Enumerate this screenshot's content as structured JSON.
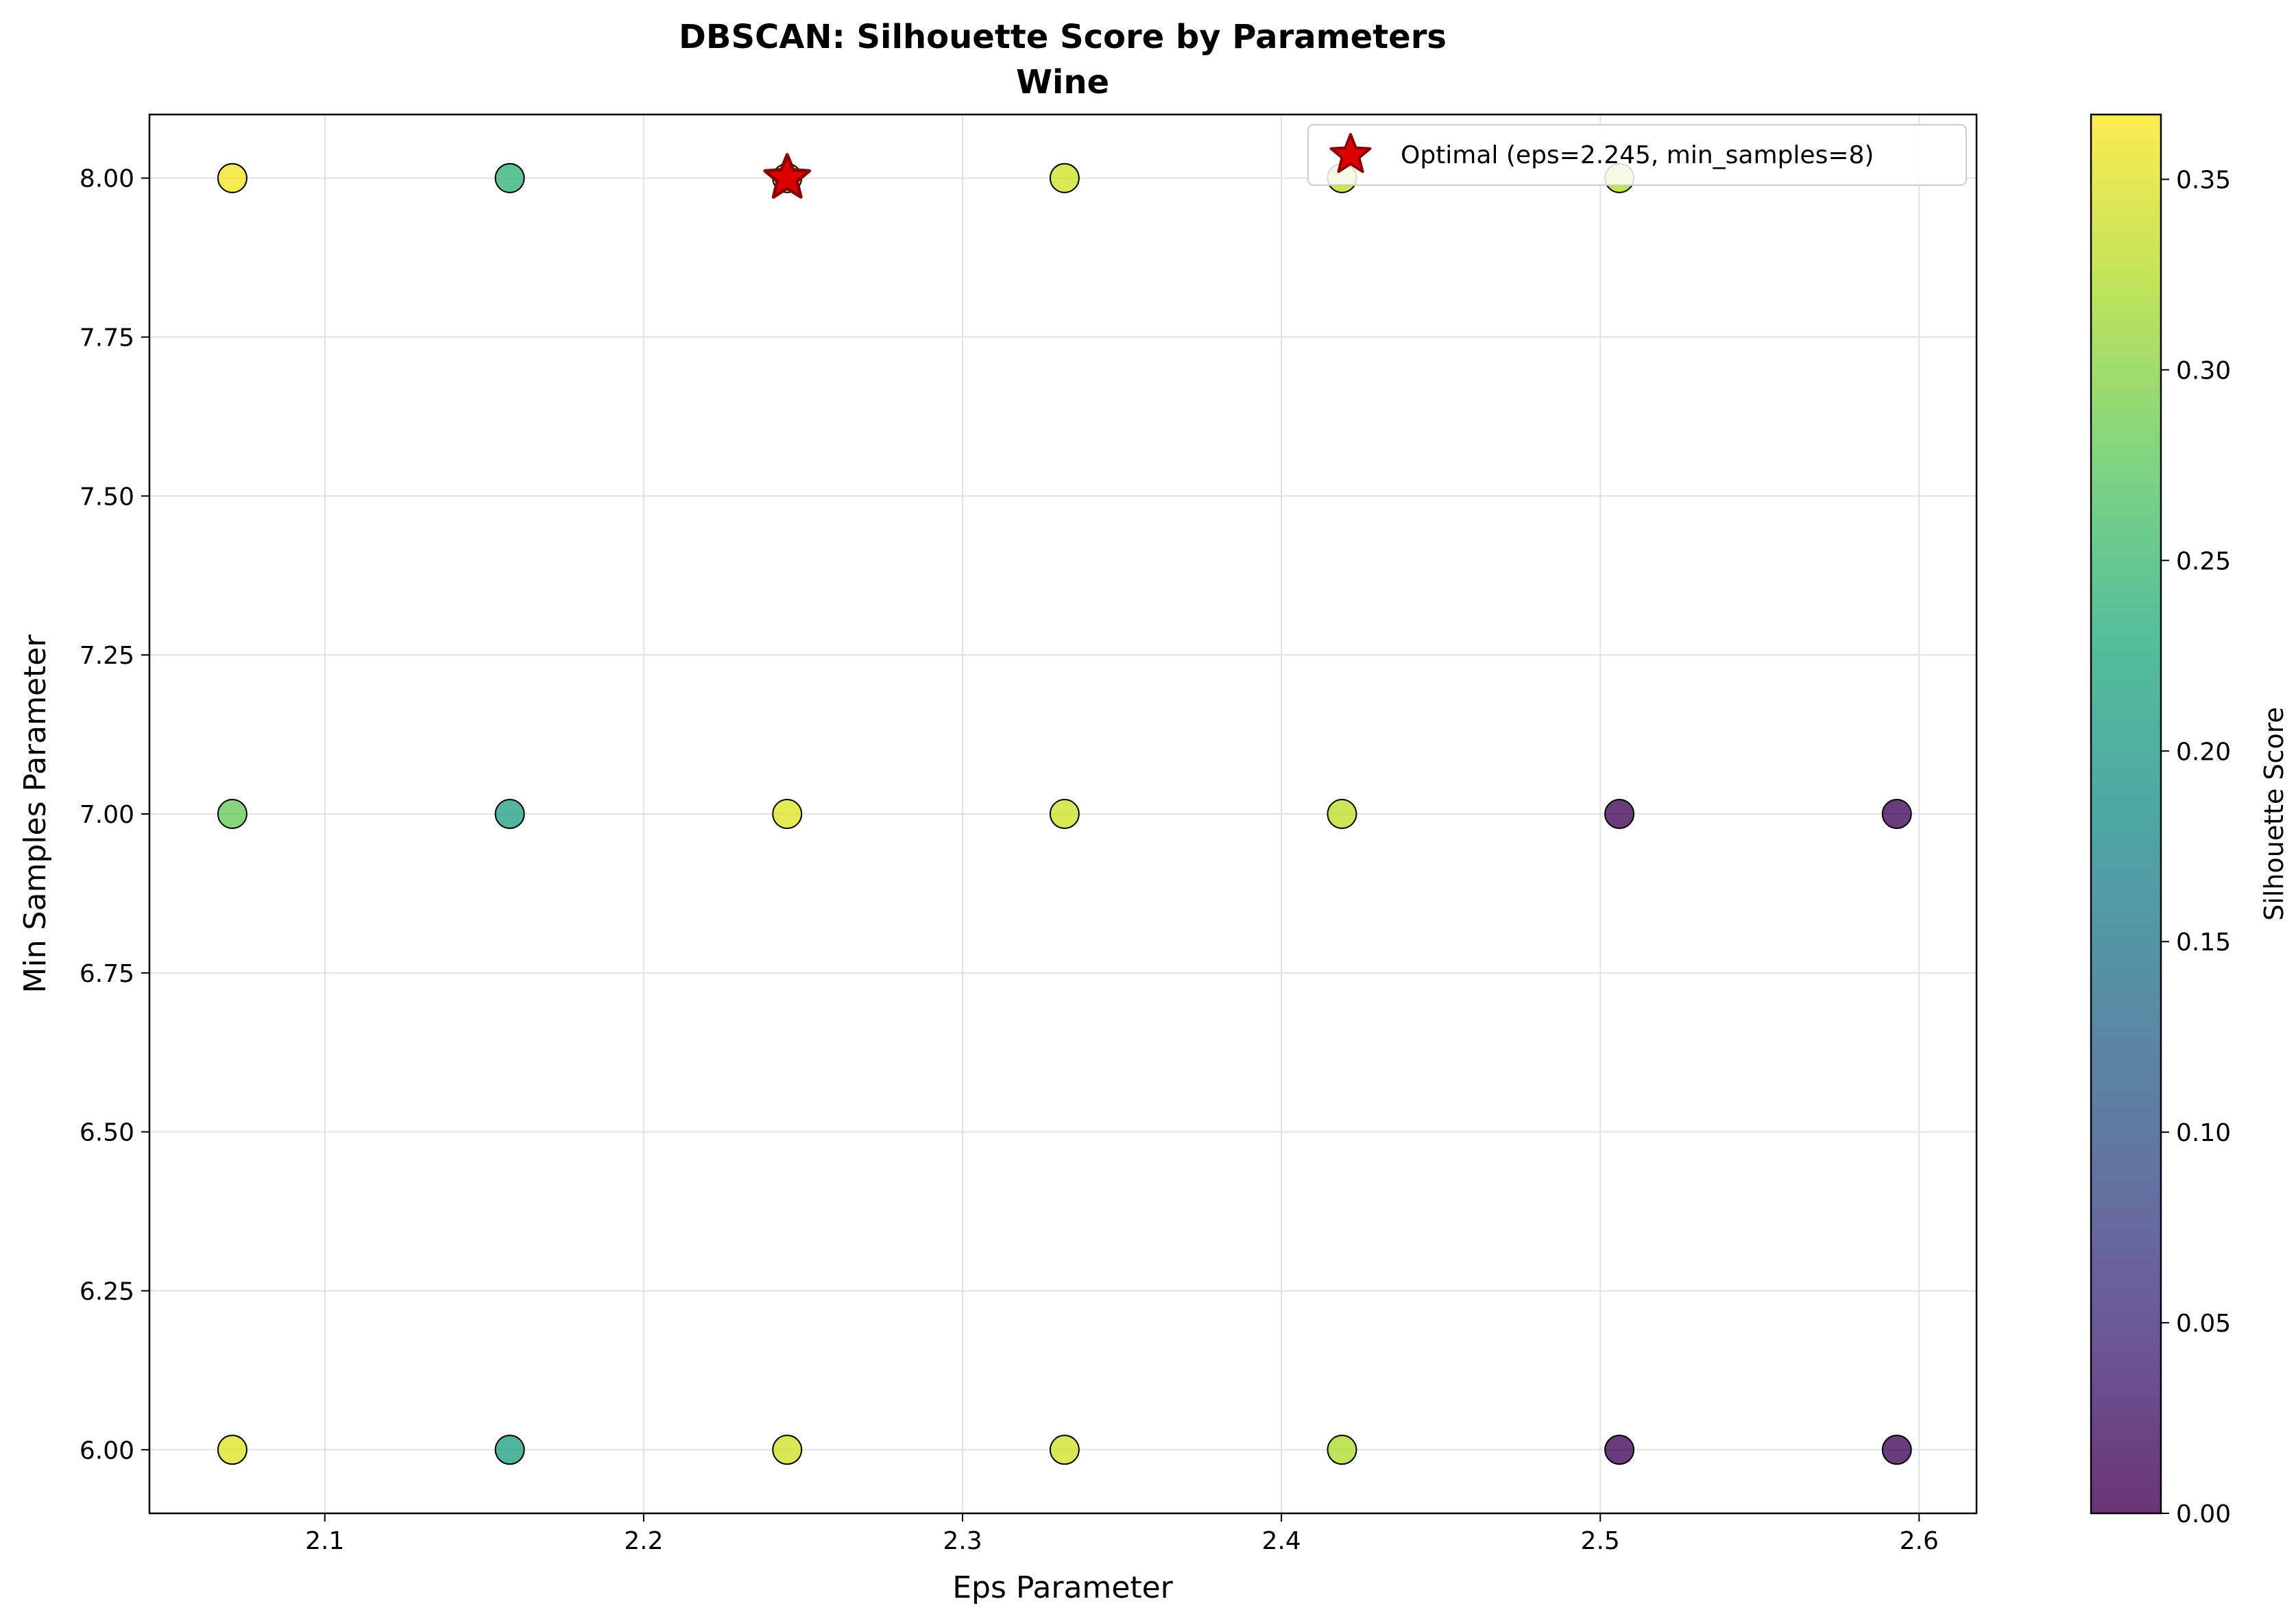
{
  "chart_data": {
    "type": "scatter",
    "title": "DBSCAN: Silhouette Score by Parameters",
    "subtitle": "Wine",
    "xlabel": "Eps Parameter",
    "ylabel": "Min Samples Parameter",
    "xlim": [
      2.045,
      2.618
    ],
    "ylim": [
      5.9,
      8.1
    ],
    "xticks": [
      "2.1",
      "2.2",
      "2.3",
      "2.4",
      "2.5",
      "2.6"
    ],
    "yticks": [
      "6.00",
      "6.25",
      "6.50",
      "6.75",
      "7.00",
      "7.25",
      "7.50",
      "7.75",
      "8.00"
    ],
    "grid": true,
    "colormap": "viridis",
    "colorbar": {
      "label": "Silhouette Score",
      "range": [
        0.0,
        0.367
      ],
      "ticks": [
        "0.00",
        "0.05",
        "0.10",
        "0.15",
        "0.20",
        "0.25",
        "0.30",
        "0.35"
      ]
    },
    "points": [
      {
        "eps": 2.071,
        "min_samples": 6,
        "score": 0.35
      },
      {
        "eps": 2.158,
        "min_samples": 6,
        "score": 0.21
      },
      {
        "eps": 2.245,
        "min_samples": 6,
        "score": 0.34
      },
      {
        "eps": 2.332,
        "min_samples": 6,
        "score": 0.34
      },
      {
        "eps": 2.419,
        "min_samples": 6,
        "score": 0.32
      },
      {
        "eps": 2.506,
        "min_samples": 6,
        "score": 0.01
      },
      {
        "eps": 2.593,
        "min_samples": 6,
        "score": 0.01
      },
      {
        "eps": 2.071,
        "min_samples": 7,
        "score": 0.28
      },
      {
        "eps": 2.158,
        "min_samples": 7,
        "score": 0.21
      },
      {
        "eps": 2.245,
        "min_samples": 7,
        "score": 0.35
      },
      {
        "eps": 2.332,
        "min_samples": 7,
        "score": 0.34
      },
      {
        "eps": 2.419,
        "min_samples": 7,
        "score": 0.33
      },
      {
        "eps": 2.506,
        "min_samples": 7,
        "score": 0.01
      },
      {
        "eps": 2.593,
        "min_samples": 7,
        "score": 0.01
      },
      {
        "eps": 2.071,
        "min_samples": 8,
        "score": 0.36
      },
      {
        "eps": 2.158,
        "min_samples": 8,
        "score": 0.24
      },
      {
        "eps": 2.245,
        "min_samples": 8,
        "score": 0.367
      },
      {
        "eps": 2.332,
        "min_samples": 8,
        "score": 0.34
      },
      {
        "eps": 2.419,
        "min_samples": 8,
        "score": 0.33
      },
      {
        "eps": 2.506,
        "min_samples": 8,
        "score": 0.32
      }
    ],
    "optimal": {
      "eps": 2.245,
      "min_samples": 8,
      "color": "#dd0000"
    },
    "legend": {
      "placement": "top-right",
      "entries": [
        "Optimal (eps=2.245, min_samples=8)"
      ]
    }
  }
}
